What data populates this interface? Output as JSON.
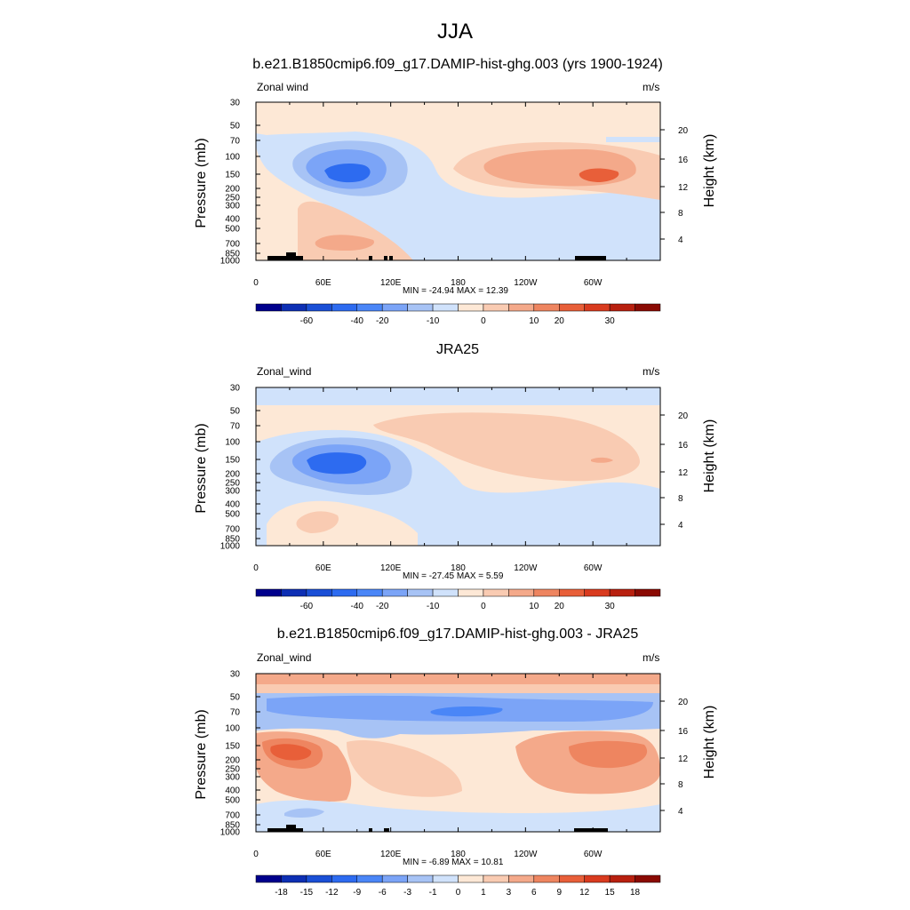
{
  "page": {
    "title": "JJA"
  },
  "panels": [
    {
      "title": "b.e21.B1850cmip6.f09_g17.DAMIP-hist-ghg.003 (yrs 1900-1924)",
      "left_label": "Zonal wind",
      "right_label": "m/s",
      "stats": "MIN = -24.94  MAX =  12.39",
      "colorbar_labels": [
        "-60",
        "-40",
        "-20",
        "-10",
        "0",
        "10",
        "20",
        "30"
      ],
      "colorbar_colors": [
        "#00008c",
        "#0d2fb4",
        "#1a4fd6",
        "#2d6bf0",
        "#4a86f7",
        "#7ba4f7",
        "#a7c3f5",
        "#d0e2fb",
        "#fde8d6",
        "#f9cbb2",
        "#f4a98a",
        "#ee8560",
        "#e85f39",
        "#d93b1f",
        "#b8200f",
        "#8a0a03"
      ]
    },
    {
      "title": "JRA25",
      "left_label": "Zonal_wind",
      "right_label": "m/s",
      "stats": "MIN = -27.45  MAX =   5.59",
      "colorbar_labels": [
        "-60",
        "-40",
        "-20",
        "-10",
        "0",
        "10",
        "20",
        "30"
      ],
      "colorbar_colors": [
        "#00008c",
        "#0d2fb4",
        "#1a4fd6",
        "#2d6bf0",
        "#4a86f7",
        "#7ba4f7",
        "#a7c3f5",
        "#d0e2fb",
        "#fde8d6",
        "#f9cbb2",
        "#f4a98a",
        "#ee8560",
        "#e85f39",
        "#d93b1f",
        "#b8200f",
        "#8a0a03"
      ]
    },
    {
      "title": "b.e21.B1850cmip6.f09_g17.DAMIP-hist-ghg.003 - JRA25",
      "left_label": "Zonal_wind",
      "right_label": "m/s",
      "stats": "MIN =  -6.89  MAX =  10.81",
      "colorbar_labels": [
        "-18",
        "-15",
        "-12",
        "-9",
        "-6",
        "-3",
        "-1",
        "0",
        "1",
        "3",
        "6",
        "9",
        "12",
        "15",
        "18"
      ],
      "colorbar_colors": [
        "#00008c",
        "#0d2fb4",
        "#1a4fd6",
        "#2d6bf0",
        "#4a86f7",
        "#7ba4f7",
        "#a7c3f5",
        "#d0e2fb",
        "#fde8d6",
        "#f9cbb2",
        "#f4a98a",
        "#ee8560",
        "#e85f39",
        "#d93b1f",
        "#b8200f",
        "#8a0a03"
      ]
    }
  ],
  "chart_data": [
    {
      "type": "heatmap",
      "title": "b.e21.B1850cmip6.f09_g17.DAMIP-hist-ghg.003 (yrs 1900-1924)",
      "xlabel": "",
      "ylabel": "Pressure (mb)",
      "ylabel_right": "Height (km)",
      "x_ticks": [
        "0",
        "60E",
        "120E",
        "180",
        "120W",
        "60W"
      ],
      "y_ticks": [
        "30",
        "50",
        "70",
        "100",
        "150",
        "200",
        "250",
        "300",
        "400",
        "500",
        "700",
        "850",
        "1000"
      ],
      "y_right_ticks": [
        "4",
        "8",
        "12",
        "16",
        "20"
      ],
      "units": "m/s",
      "min": -24.94,
      "max": 12.39,
      "features": [
        {
          "label": "easterly jet core",
          "lon": 75,
          "p": 150,
          "value": -22
        },
        {
          "label": "westerly maximum",
          "lon": 300,
          "p": 150,
          "value": 12
        },
        {
          "label": "westerly band",
          "lon": 230,
          "p": 150,
          "value": 8
        },
        {
          "label": "lower westerlies",
          "lon": 70,
          "p": 700,
          "value": 6
        }
      ]
    },
    {
      "type": "heatmap",
      "title": "JRA25",
      "xlabel": "",
      "ylabel": "Pressure (mb)",
      "ylabel_right": "Height (km)",
      "x_ticks": [
        "0",
        "60E",
        "120E",
        "180",
        "120W",
        "60W"
      ],
      "y_ticks": [
        "30",
        "50",
        "70",
        "100",
        "150",
        "200",
        "250",
        "300",
        "400",
        "500",
        "700",
        "850",
        "1000"
      ],
      "y_right_ticks": [
        "4",
        "8",
        "12",
        "16",
        "20"
      ],
      "units": "m/s",
      "min": -27.45,
      "max": 5.59,
      "features": [
        {
          "label": "easterly jet core",
          "lon": 75,
          "p": 150,
          "value": -25
        },
        {
          "label": "westerly band",
          "lon": 230,
          "p": 100,
          "value": 4
        },
        {
          "label": "easterly stratosphere",
          "lon": 180,
          "p": 30,
          "value": -4
        }
      ]
    },
    {
      "type": "heatmap",
      "title": "b.e21.B1850cmip6.f09_g17.DAMIP-hist-ghg.003 - JRA25",
      "xlabel": "",
      "ylabel": "Pressure (mb)",
      "ylabel_right": "Height (km)",
      "x_ticks": [
        "0",
        "60E",
        "120E",
        "180",
        "120W",
        "60W"
      ],
      "y_ticks": [
        "30",
        "50",
        "70",
        "100",
        "150",
        "200",
        "250",
        "300",
        "400",
        "500",
        "700",
        "850",
        "1000"
      ],
      "y_right_ticks": [
        "4",
        "8",
        "12",
        "16",
        "20"
      ],
      "units": "m/s",
      "min": -6.89,
      "max": 10.81,
      "features": [
        {
          "label": "negative band",
          "lon": 180,
          "p": 70,
          "value": -6
        },
        {
          "label": "positive core west",
          "lon": 45,
          "p": 150,
          "value": 10
        },
        {
          "label": "positive core east",
          "lon": 315,
          "p": 150,
          "value": 9
        },
        {
          "label": "positive top",
          "lon": 180,
          "p": 30,
          "value": 4
        }
      ]
    }
  ]
}
